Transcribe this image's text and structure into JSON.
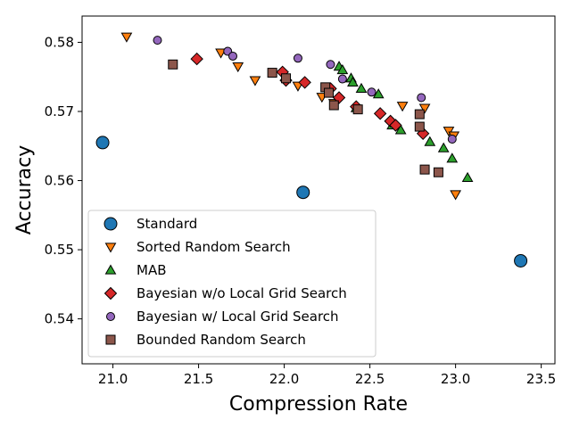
{
  "chart_data": {
    "type": "scatter",
    "xlabel": "Compression Rate",
    "ylabel": "Accuracy",
    "xlim": [
      20.82,
      23.58
    ],
    "ylim": [
      0.5335,
      0.5838
    ],
    "xticks": [
      21.0,
      21.5,
      22.0,
      22.5,
      23.0,
      23.5
    ],
    "yticks": [
      0.54,
      0.55,
      0.56,
      0.57,
      0.58
    ],
    "xtick_labels": [
      "21.0",
      "21.5",
      "22.0",
      "22.5",
      "23.0",
      "23.5"
    ],
    "ytick_labels": [
      "0.54",
      "0.55",
      "0.56",
      "0.57",
      "0.58"
    ],
    "grid": false,
    "legend_position": "lower-left",
    "series": [
      {
        "name": "Standard",
        "marker": "circle",
        "color": "#1f77b4",
        "points": [
          [
            20.94,
            0.5655
          ],
          [
            22.11,
            0.5583
          ],
          [
            23.38,
            0.5484
          ]
        ]
      },
      {
        "name": "Sorted Random Search",
        "marker": "triangle-down",
        "color": "#ff7f0e",
        "points": [
          [
            21.08,
            0.5808
          ],
          [
            21.63,
            0.5785
          ],
          [
            21.73,
            0.5765
          ],
          [
            21.83,
            0.5745
          ],
          [
            22.08,
            0.5737
          ],
          [
            22.22,
            0.5721
          ],
          [
            22.29,
            0.5712
          ],
          [
            22.69,
            0.5708
          ],
          [
            22.82,
            0.5705
          ],
          [
            22.96,
            0.5672
          ],
          [
            22.99,
            0.5665
          ],
          [
            23.0,
            0.558
          ]
        ]
      },
      {
        "name": "MAB",
        "marker": "triangle-up",
        "color": "#2ca02c",
        "points": [
          [
            22.32,
            0.5765
          ],
          [
            22.34,
            0.576
          ],
          [
            22.39,
            0.5748
          ],
          [
            22.4,
            0.5742
          ],
          [
            22.45,
            0.5733
          ],
          [
            22.55,
            0.5725
          ],
          [
            22.63,
            0.568
          ],
          [
            22.68,
            0.5673
          ],
          [
            22.85,
            0.5656
          ],
          [
            22.93,
            0.5647
          ],
          [
            22.98,
            0.5632
          ],
          [
            23.07,
            0.5604
          ],
          [
            22.42,
            0.5705
          ]
        ]
      },
      {
        "name": "Bayesian w/o Local Grid Search",
        "marker": "diamond",
        "color": "#d62728",
        "points": [
          [
            21.49,
            0.5776
          ],
          [
            21.99,
            0.5757
          ],
          [
            22.01,
            0.5745
          ],
          [
            22.12,
            0.5742
          ],
          [
            22.27,
            0.5733
          ],
          [
            22.32,
            0.572
          ],
          [
            22.42,
            0.5707
          ],
          [
            22.56,
            0.5697
          ],
          [
            22.62,
            0.5686
          ],
          [
            22.65,
            0.568
          ],
          [
            22.81,
            0.5668
          ]
        ]
      },
      {
        "name": "Bayesian w/ Local Grid Search",
        "marker": "circle-small",
        "color": "#9467bd",
        "points": [
          [
            21.26,
            0.5803
          ],
          [
            21.67,
            0.5787
          ],
          [
            21.7,
            0.578
          ],
          [
            22.08,
            0.5777
          ],
          [
            22.27,
            0.5768
          ],
          [
            22.34,
            0.5747
          ],
          [
            22.51,
            0.5728
          ],
          [
            22.8,
            0.572
          ],
          [
            22.98,
            0.566
          ],
          [
            22.43,
            0.5703
          ]
        ]
      },
      {
        "name": "Bounded Random Search",
        "marker": "square",
        "color": "#8c564b",
        "points": [
          [
            21.35,
            0.5768
          ],
          [
            21.93,
            0.5756
          ],
          [
            22.01,
            0.5748
          ],
          [
            22.24,
            0.5735
          ],
          [
            22.26,
            0.5727
          ],
          [
            22.29,
            0.5709
          ],
          [
            22.43,
            0.5703
          ],
          [
            22.79,
            0.5696
          ],
          [
            22.79,
            0.5678
          ],
          [
            22.82,
            0.5616
          ],
          [
            22.9,
            0.5612
          ]
        ]
      }
    ]
  }
}
